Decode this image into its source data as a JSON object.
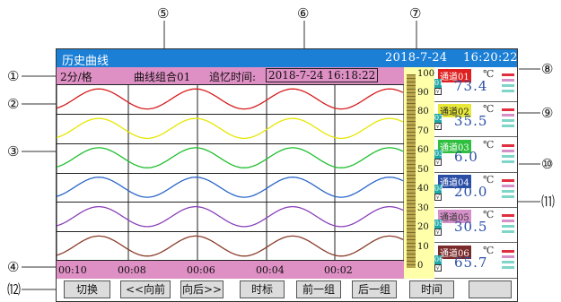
{
  "window": {
    "title": "历史曲线",
    "date": "2018-7-24",
    "time": "16:20:22"
  },
  "info": {
    "interval": "2分/格",
    "group": "曲线组合01",
    "recall_label": "追忆时间:",
    "recall_value": "2018-7-24 16:18:22"
  },
  "time_axis": [
    "00:10",
    "00:08",
    "00:06",
    "00:04",
    "00:02"
  ],
  "scale_labels": [
    "100",
    "90",
    "80",
    "70",
    "60",
    "50",
    "40",
    "30",
    "20",
    "10",
    "0"
  ],
  "channels": [
    {
      "name": "通道01",
      "unit": "℃",
      "value": "73.4",
      "num": "01",
      "check": "√",
      "color": "#d61c1c",
      "name_bg": "#e02020",
      "name_fg": "#ffffff",
      "num_bg": "#20a8a8",
      "value_color": "#2a4ea6"
    },
    {
      "name": "通道02",
      "unit": "℃",
      "value": "35.5",
      "num": "02",
      "check": "√",
      "color": "#e6e600",
      "name_bg": "#e8e83a",
      "name_fg": "#222222",
      "num_bg": "#20a8a8",
      "value_color": "#2a4ea6"
    },
    {
      "name": "通道03",
      "unit": "℃",
      "value": "6.0",
      "num": "03",
      "check": "√",
      "color": "#1fbf2f",
      "name_bg": "#2fbf3f",
      "name_fg": "#ffffff",
      "num_bg": "#20a8a8",
      "value_color": "#2a4ea6"
    },
    {
      "name": "通道04",
      "unit": "℃",
      "value": "20.0",
      "num": "04",
      "check": "√",
      "color": "#2a66c8",
      "name_bg": "#2a4ea6",
      "name_fg": "#ffffff",
      "num_bg": "#20a8a8",
      "value_color": "#2a4ea6"
    },
    {
      "name": "通道05",
      "unit": "℃",
      "value": "30.5",
      "num": "05",
      "check": "√",
      "color": "#8a3fb8",
      "name_bg": "#d690c8",
      "name_fg": "#333333",
      "num_bg": "#20a8a8",
      "value_color": "#2a4ea6"
    },
    {
      "name": "通道06",
      "unit": "℃",
      "value": "65.7",
      "num": "06",
      "check": "√",
      "color": "#8a3c2a",
      "name_bg": "#7a2a2a",
      "name_fg": "#ffffff",
      "num_bg": "#20a8a8",
      "value_color": "#2a4ea6"
    }
  ],
  "buttons": [
    "切换",
    "<<向前",
    "向后>>",
    "时标",
    "前一组",
    "后一组",
    "时间",
    ""
  ],
  "callouts": [
    "①",
    "②",
    "③",
    "④",
    "⑤",
    "⑥",
    "⑦",
    "⑧",
    "⑨",
    "⑩",
    "⑾",
    "⑿"
  ]
}
